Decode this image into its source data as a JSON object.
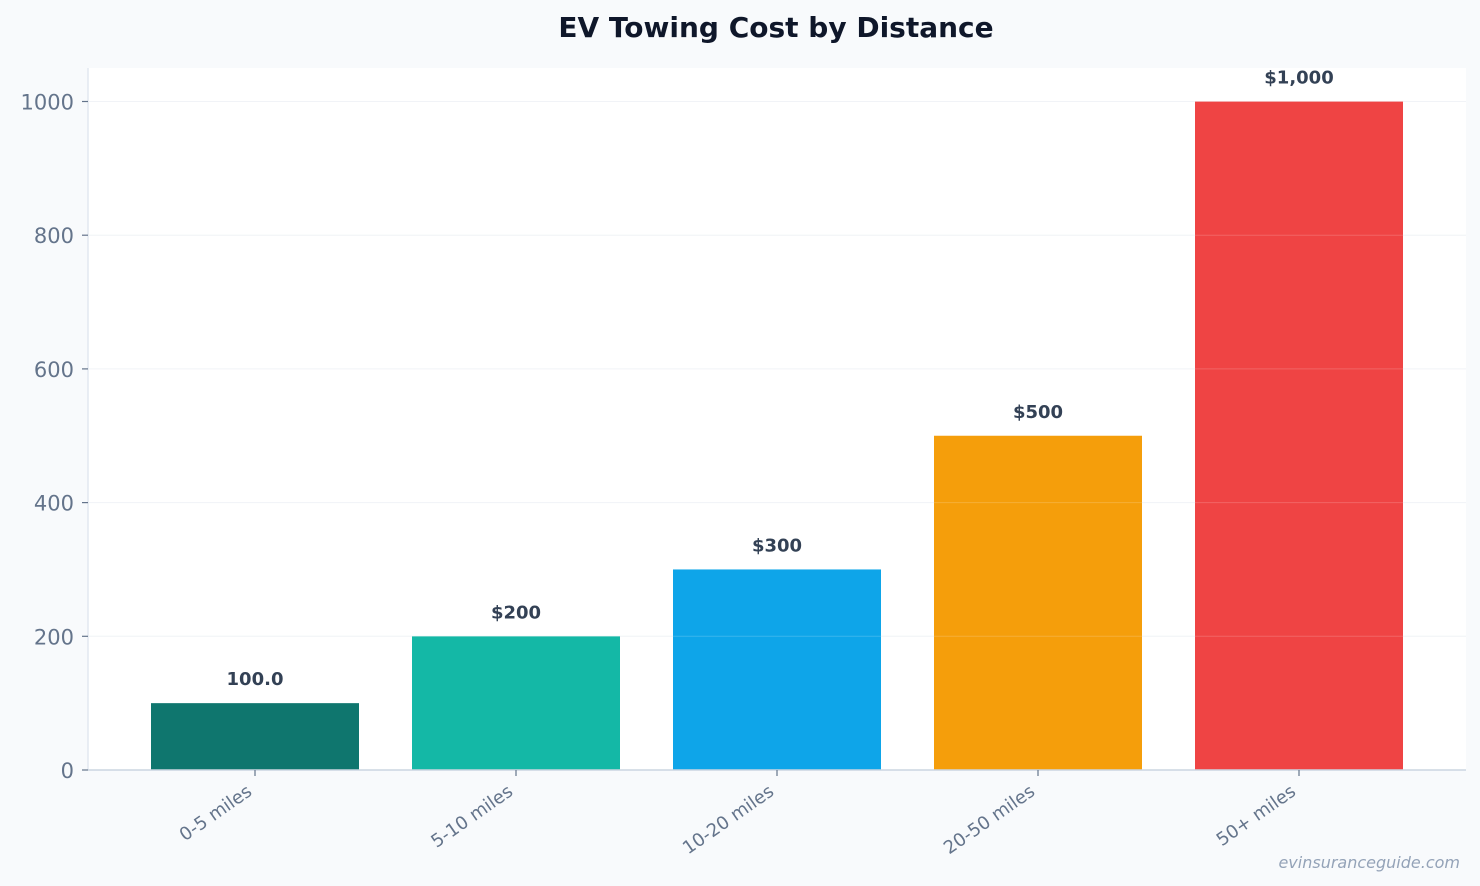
{
  "chart_data": {
    "type": "bar",
    "title": "EV Towing Cost by Distance",
    "xlabel": "",
    "ylabel": "",
    "categories": [
      "0-5 miles",
      "5-10 miles",
      "10-20 miles",
      "20-50 miles",
      "50+ miles"
    ],
    "values": [
      100,
      200,
      300,
      500,
      1000
    ],
    "data_labels": [
      "100.0",
      "$200",
      "$300",
      "$500",
      "$1,000"
    ],
    "colors": [
      "#0f766e",
      "#14b8a6",
      "#0ea5e9",
      "#f59e0b",
      "#ef4444"
    ],
    "ylim": [
      0,
      1050
    ],
    "yticks": [
      0,
      200,
      400,
      600,
      800,
      1000
    ],
    "ytick_labels": [
      "0",
      "200",
      "400",
      "600",
      "800",
      "1000"
    ],
    "grid": true,
    "legend": "none"
  },
  "watermark": "evinsuranceguide.com",
  "style": {
    "background": "#f8fafc",
    "plot_background": "#ffffff",
    "grid_color": "#e2e8f0",
    "axis_color": "#cbd5e1",
    "title_color": "#0f172a",
    "tick_color": "#64748b",
    "label_color": "#334155"
  }
}
